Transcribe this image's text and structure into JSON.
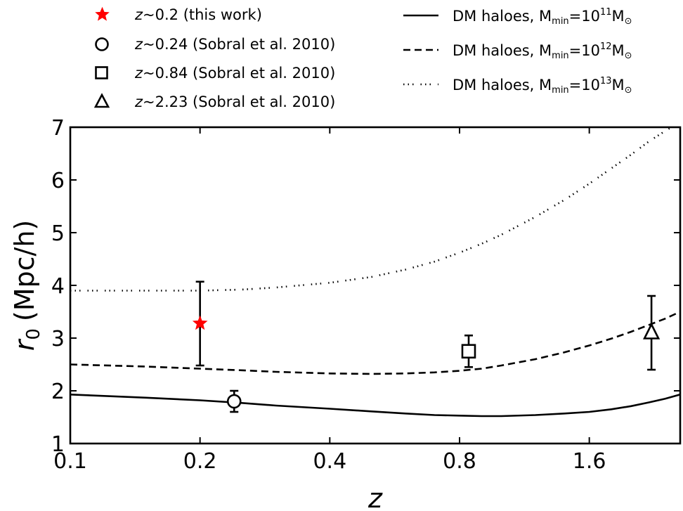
{
  "chart_data": {
    "type": "scatter",
    "xscale": "log2",
    "xlim": [
      0.1,
      2.6
    ],
    "ylim": [
      1,
      7
    ],
    "xticks": [
      0.1,
      0.2,
      0.4,
      0.8,
      1.6
    ],
    "xtick_labels": [
      "0.1",
      "0.2",
      "0.4",
      "0.8",
      "1.6"
    ],
    "yticks": [
      1,
      2,
      3,
      4,
      5,
      6,
      7
    ],
    "ytick_labels": [
      "1",
      "2",
      "3",
      "4",
      "5",
      "6",
      "7"
    ],
    "xlabel": "z",
    "ylabel_var": "r",
    "ylabel_sub": "0",
    "ylabel_unit": "(Mpc/h)",
    "legend_placement": "above plot, two columns",
    "points": [
      {
        "key": "p0",
        "legend": {
          "z": "z",
          "text": "~0.2 (this work)"
        },
        "marker": "star",
        "color": "#ff0000",
        "x": 0.2,
        "y": 3.28,
        "err_low": 2.48,
        "err_high": 4.07
      },
      {
        "key": "p1",
        "legend": {
          "z": "z",
          "text": "~0.24 (Sobral et al. 2010)"
        },
        "marker": "circle",
        "color": "#000000",
        "x": 0.24,
        "y": 1.8,
        "err_low": 1.6,
        "err_high": 2.0
      },
      {
        "key": "p2",
        "legend": {
          "z": "z",
          "text": "~0.84 (Sobral et al. 2010)"
        },
        "marker": "square",
        "color": "#000000",
        "x": 0.84,
        "y": 2.75,
        "err_low": 2.45,
        "err_high": 3.05
      },
      {
        "key": "p3",
        "legend": {
          "z": "z",
          "text": "~2.23 (Sobral et al. 2010)"
        },
        "marker": "triangle",
        "color": "#000000",
        "x": 2.23,
        "y": 3.1,
        "err_low": 2.4,
        "err_high": 3.8
      }
    ],
    "series": [
      {
        "key": "s11",
        "legend": {
          "prefix": "DM haloes, M",
          "sub": "min",
          "eq": "=10",
          "sup": "11",
          "suffix": "M",
          "solar": "⊙"
        },
        "style": "solid",
        "x": [
          0.1,
          0.15,
          0.2,
          0.25,
          0.3,
          0.4,
          0.5,
          0.6,
          0.7,
          0.8,
          0.9,
          1.0,
          1.2,
          1.4,
          1.6,
          1.8,
          2.0,
          2.2,
          2.4,
          2.6
        ],
        "y": [
          1.93,
          1.87,
          1.82,
          1.77,
          1.72,
          1.66,
          1.61,
          1.57,
          1.54,
          1.53,
          1.52,
          1.52,
          1.54,
          1.57,
          1.6,
          1.65,
          1.71,
          1.78,
          1.85,
          1.93
        ]
      },
      {
        "key": "s12",
        "legend": {
          "prefix": "DM haloes, M",
          "sub": "min",
          "eq": "=10",
          "sup": "12",
          "suffix": "M",
          "solar": "⊙"
        },
        "style": "dashed",
        "x": [
          0.1,
          0.15,
          0.2,
          0.25,
          0.3,
          0.4,
          0.5,
          0.6,
          0.7,
          0.8,
          0.9,
          1.0,
          1.2,
          1.4,
          1.6,
          1.8,
          2.0,
          2.2,
          2.4,
          2.6
        ],
        "y": [
          2.5,
          2.46,
          2.42,
          2.39,
          2.36,
          2.33,
          2.32,
          2.33,
          2.35,
          2.38,
          2.42,
          2.48,
          2.6,
          2.73,
          2.86,
          2.99,
          3.12,
          3.25,
          3.37,
          3.5
        ]
      },
      {
        "key": "s13",
        "legend": {
          "prefix": "DM haloes, M",
          "sub": "min",
          "eq": "=10",
          "sup": "13",
          "suffix": "M",
          "solar": "⊙"
        },
        "style": "dashdot",
        "x": [
          0.1,
          0.15,
          0.2,
          0.25,
          0.3,
          0.4,
          0.5,
          0.6,
          0.7,
          0.8,
          0.9,
          1.0,
          1.2,
          1.4,
          1.6,
          1.8,
          2.0,
          2.2,
          2.4,
          2.6
        ],
        "y": [
          3.9,
          3.9,
          3.9,
          3.92,
          3.96,
          4.05,
          4.16,
          4.3,
          4.45,
          4.62,
          4.79,
          4.96,
          5.3,
          5.62,
          5.93,
          6.22,
          6.48,
          6.73,
          6.93,
          7.1
        ]
      }
    ]
  }
}
